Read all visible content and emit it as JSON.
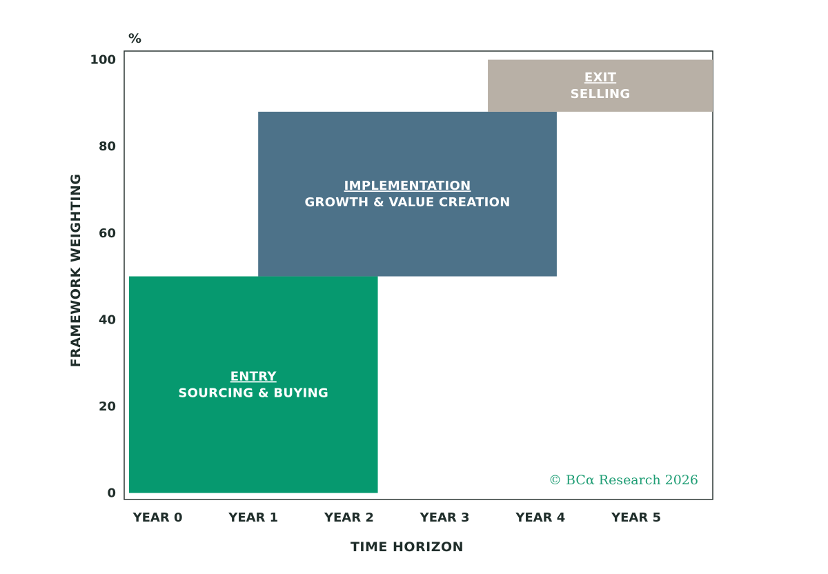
{
  "chart_data": {
    "type": "bar",
    "xlabel": "TIME HORIZON",
    "ylabel": "FRAMEWORK WEIGHTING",
    "y_unit": "%",
    "categories": [
      "YEAR 0",
      "YEAR 1",
      "YEAR 2",
      "YEAR 3",
      "YEAR 4",
      "YEAR 5"
    ],
    "xlim": [
      -0.35,
      5.8
    ],
    "ylim": [
      -1.5,
      102
    ],
    "y_ticks": [
      0,
      20,
      40,
      60,
      80,
      100
    ],
    "grid": false,
    "phases": [
      {
        "title": "ENTRY",
        "subtitle": "SOURCING & BUYING",
        "x_start": -0.3,
        "x_end": 2.3,
        "y_start": 0,
        "y_end": 50,
        "color": "#06996f"
      },
      {
        "title": "IMPLEMENTATION",
        "subtitle": "GROWTH & VALUE CREATION",
        "x_start": 1.05,
        "x_end": 4.17,
        "y_start": 50,
        "y_end": 88,
        "color": "#4d7289"
      },
      {
        "title": "EXIT",
        "subtitle": "SELLING",
        "x_start": 3.45,
        "x_end": 5.8,
        "y_start": 88,
        "y_end": 100,
        "color": "#b8b0a6"
      }
    ],
    "credit": "© BCα Research 2026"
  }
}
